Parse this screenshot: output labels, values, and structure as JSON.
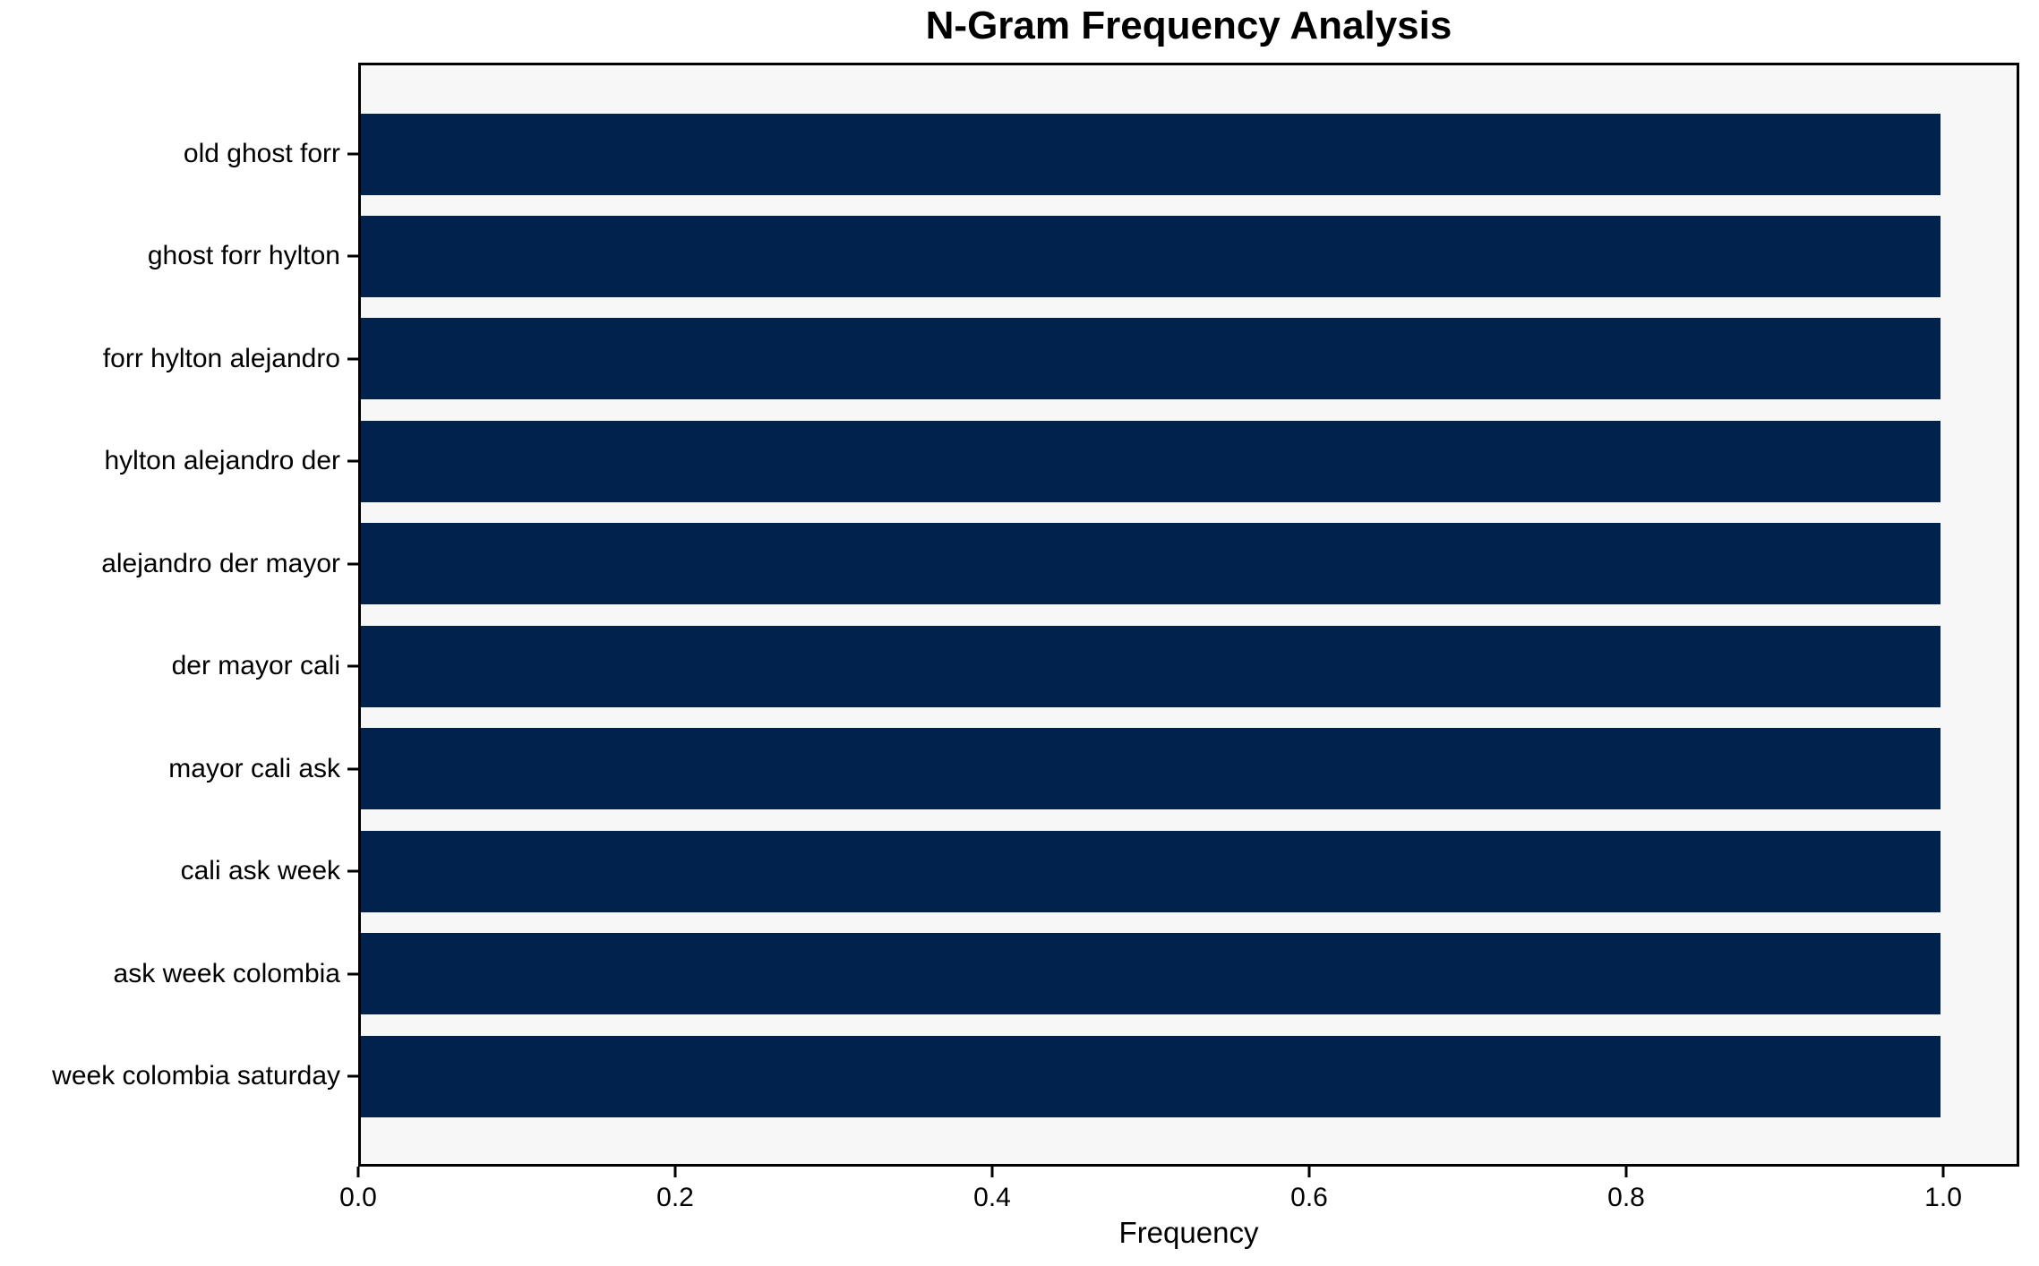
{
  "chart_data": {
    "type": "bar",
    "orientation": "horizontal",
    "title": "N-Gram Frequency Analysis",
    "xlabel": "Frequency",
    "ylabel": "",
    "categories": [
      "old ghost forr",
      "ghost forr hylton",
      "forr hylton alejandro",
      "hylton alejandro der",
      "alejandro der mayor",
      "der mayor cali",
      "mayor cali ask",
      "cali ask week",
      "ask week colombia",
      "week colombia saturday"
    ],
    "values": [
      1.0,
      1.0,
      1.0,
      1.0,
      1.0,
      1.0,
      1.0,
      1.0,
      1.0,
      1.0
    ],
    "xlim": [
      0,
      1.048
    ],
    "xticks": [
      "0.0",
      "0.2",
      "0.4",
      "0.6",
      "0.8",
      "1.0"
    ],
    "xtick_values": [
      0.0,
      0.2,
      0.4,
      0.6,
      0.8,
      1.0
    ],
    "grid": false,
    "legend": null,
    "colors": {
      "bar": "#02224e",
      "plot_background": "#f7f7f7",
      "figure_background": "#ffffff",
      "axis": "#000000",
      "text": "#000000"
    }
  }
}
